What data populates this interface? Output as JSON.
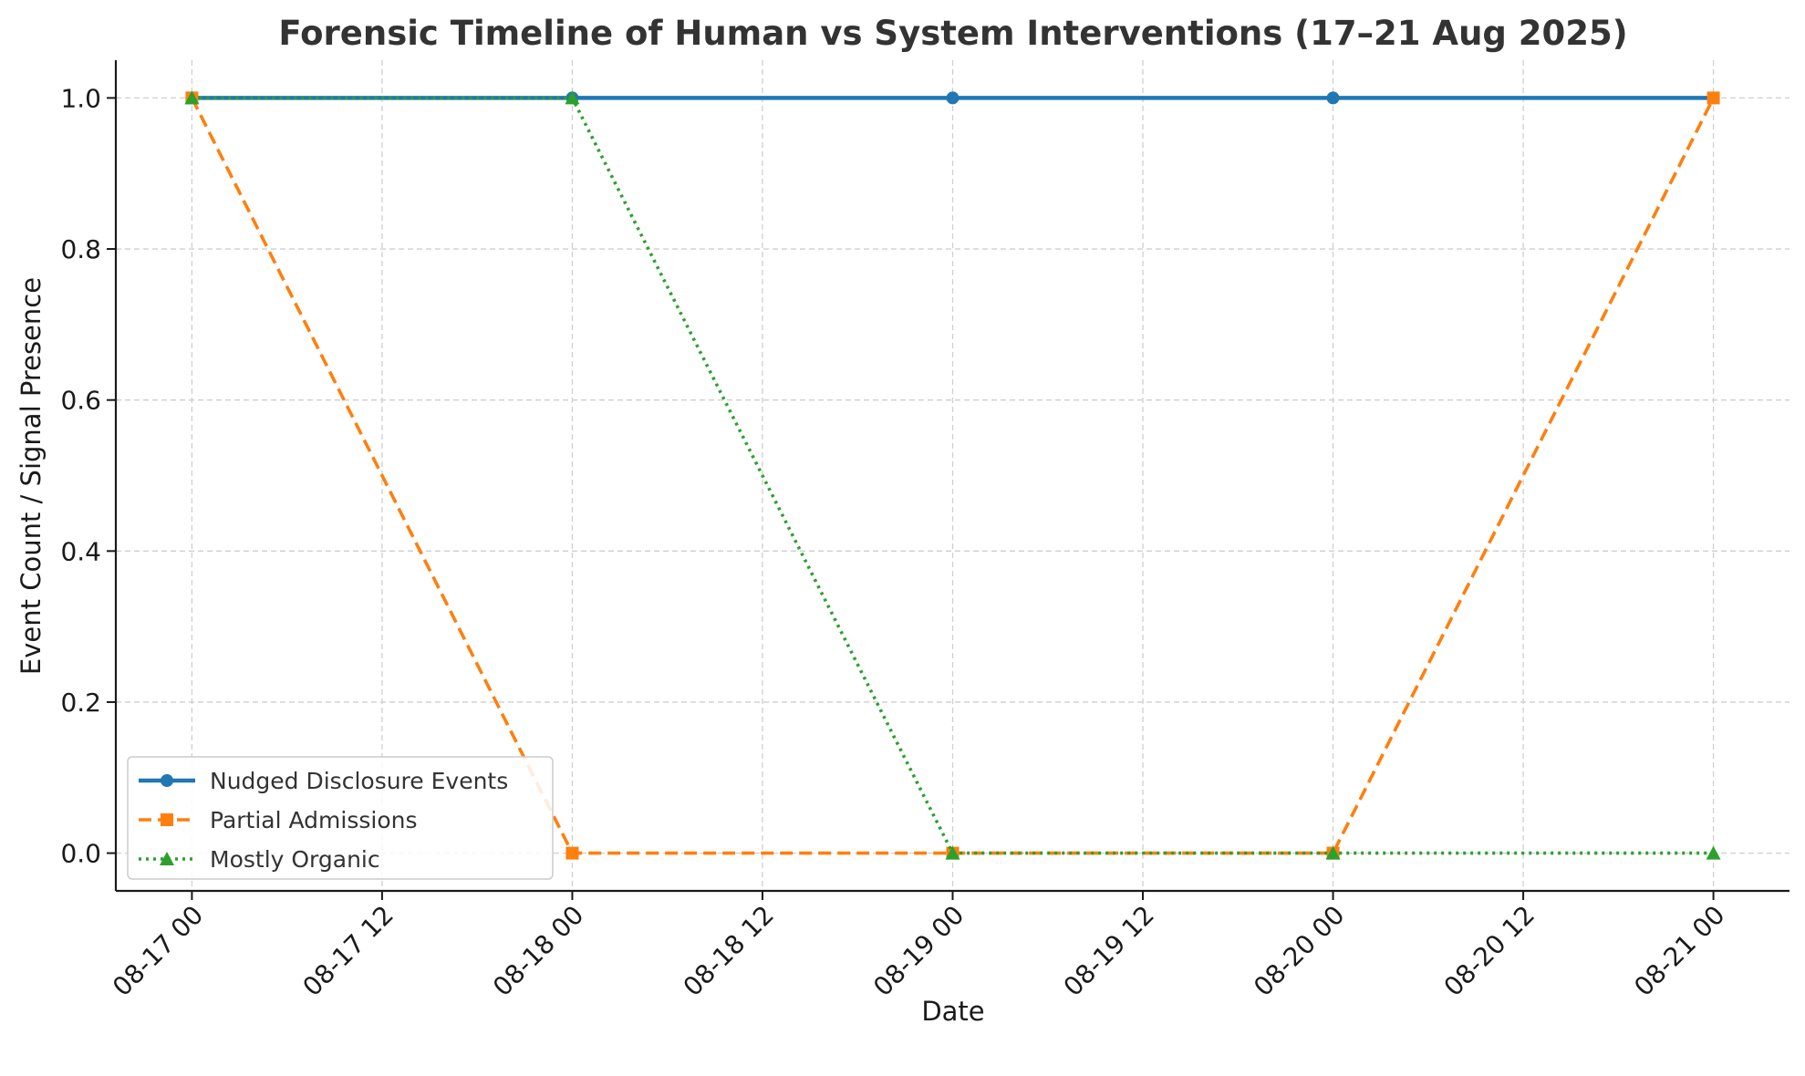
{
  "chart_data": {
    "type": "line",
    "title": "Forensic Timeline of Human vs System Interventions (17–21 Aug 2025)",
    "xlabel": "Date",
    "ylabel": "Event Count / Signal Presence",
    "x": [
      "2025-08-17T00:00",
      "2025-08-18T00:00",
      "2025-08-19T00:00",
      "2025-08-20T00:00",
      "2025-08-21T00:00"
    ],
    "x_tick_values": [
      "2025-08-17T00:00",
      "2025-08-17T12:00",
      "2025-08-18T00:00",
      "2025-08-18T12:00",
      "2025-08-19T00:00",
      "2025-08-19T12:00",
      "2025-08-20T00:00",
      "2025-08-20T12:00",
      "2025-08-21T00:00"
    ],
    "x_tick_labels": [
      "08-17 00",
      "08-17 12",
      "08-18 00",
      "08-18 12",
      "08-19 00",
      "08-19 12",
      "08-20 00",
      "08-20 12",
      "08-21 00"
    ],
    "y_tick_values": [
      0.0,
      0.2,
      0.4,
      0.6,
      0.8,
      1.0
    ],
    "y_tick_labels": [
      "0.0",
      "0.2",
      "0.4",
      "0.6",
      "0.8",
      "1.0"
    ],
    "ylim": [
      -0.05,
      1.05
    ],
    "grid": true,
    "legend_position": "lower-left",
    "series": [
      {
        "name": "Nudged Disclosure Events",
        "values": [
          1,
          1,
          1,
          1,
          1
        ],
        "color": "#1f77b4",
        "line_style": "solid",
        "marker": "circle"
      },
      {
        "name": "Partial Admissions",
        "values": [
          1,
          0,
          0,
          0,
          1
        ],
        "color": "#ff7f0e",
        "line_style": "dashed",
        "marker": "square"
      },
      {
        "name": "Mostly Organic",
        "values": [
          1,
          1,
          0,
          0,
          0
        ],
        "color": "#2ca02c",
        "line_style": "dotted",
        "marker": "triangle"
      }
    ]
  }
}
